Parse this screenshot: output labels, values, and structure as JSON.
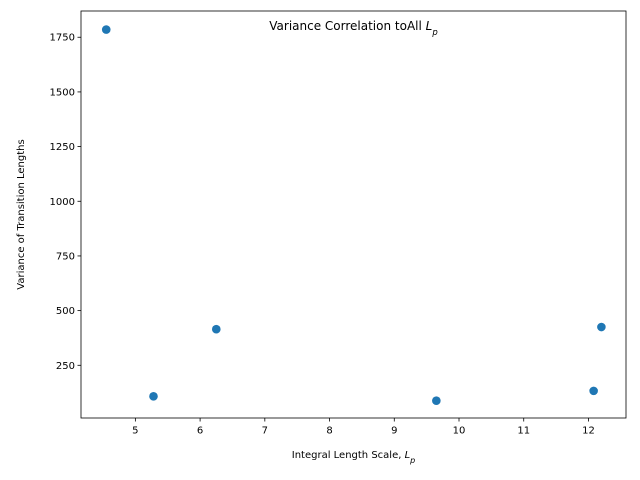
{
  "chart_data": {
    "type": "scatter",
    "title": "Variance Correlation toAll L_p",
    "title_parts": {
      "main": "Variance Correlation toAll ",
      "sym": "L",
      "sub": "p"
    },
    "xlabel": "Integral Length Scale, L_p",
    "xlabel_parts": {
      "main": "Integral Length Scale, ",
      "sym": "L",
      "sub": "p"
    },
    "ylabel": "Variance of Transition Lengths",
    "xlim": [
      4.16,
      12.58
    ],
    "ylim": [
      9,
      1870
    ],
    "xticks": [
      5,
      6,
      7,
      8,
      9,
      10,
      11,
      12
    ],
    "yticks": [
      250,
      500,
      750,
      1000,
      1250,
      1500,
      1750
    ],
    "x": [
      4.55,
      5.28,
      6.25,
      9.65,
      12.08,
      12.2
    ],
    "y": [
      1785,
      108,
      415,
      88,
      133,
      425
    ],
    "marker_color": "#1f77b4",
    "grid": false,
    "legend": "none"
  }
}
